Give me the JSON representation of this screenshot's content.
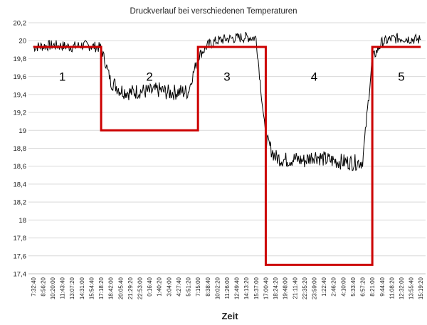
{
  "chart_data": {
    "type": "line",
    "title": "Druckverlauf bei verschiedenen Temperaturen",
    "xlabel": "Zeit",
    "ylabel": "",
    "ylim": [
      17.4,
      20.2
    ],
    "yticks": [
      "17,4",
      "17,6",
      "17,8",
      "18",
      "18,2",
      "18,4",
      "18,6",
      "18,8",
      "19",
      "19,2",
      "19,4",
      "19,6",
      "19,8",
      "20",
      "20,2"
    ],
    "categories": [
      "7:32:40",
      "8:56:20",
      "10:20:00",
      "11:43:40",
      "13:07:20",
      "14:31:00",
      "15:54:40",
      "17:18:20",
      "18:42:00",
      "20:05:40",
      "21:29:20",
      "22:53:00",
      "0:16:40",
      "1:40:20",
      "3:04:00",
      "4:27:40",
      "5:51:20",
      "7:15:00",
      "8:38:40",
      "10:02:20",
      "11:26:00",
      "12:49:40",
      "14:13:20",
      "15:37:00",
      "17:00:40",
      "18:24:20",
      "19:48:00",
      "21:11:40",
      "22:35:20",
      "23:59:00",
      "1:22:40",
      "2:46:20",
      "4:10:00",
      "5:33:40",
      "6:57:20",
      "8:21:00",
      "9:44:40",
      "11:08:20",
      "12:32:00",
      "13:55:40",
      "15:19:20"
    ],
    "segment_labels": [
      "1",
      "2",
      "3",
      "4",
      "5"
    ],
    "series": [
      {
        "color": "#000000",
        "values": [
          19.93,
          19.94,
          19.95,
          19.94,
          19.93,
          19.95,
          19.94,
          19.92,
          19.55,
          19.45,
          19.42,
          19.44,
          19.43,
          19.45,
          19.42,
          19.43,
          19.43,
          19.82,
          19.95,
          20.0,
          20.02,
          20.03,
          20.04,
          20.03,
          18.9,
          18.7,
          18.67,
          18.68,
          18.66,
          18.72,
          18.68,
          18.66,
          18.65,
          18.64,
          18.65,
          19.8,
          19.98,
          20.02,
          20.03,
          20.02,
          20.01
        ]
      },
      {
        "color": "#cc0000",
        "values": [
          19.93,
          19.93,
          19.93,
          19.93,
          19.93,
          19.93,
          19.93,
          19.0,
          19.0,
          19.0,
          19.0,
          19.0,
          19.0,
          19.0,
          19.0,
          19.0,
          19.0,
          19.93,
          19.93,
          19.93,
          19.93,
          19.93,
          19.93,
          19.93,
          17.5,
          17.5,
          17.5,
          17.5,
          17.5,
          17.5,
          17.5,
          17.5,
          17.5,
          17.5,
          17.5,
          19.93,
          19.93,
          19.93,
          19.93,
          19.93,
          19.93
        ]
      }
    ],
    "grid": "horizontal"
  }
}
